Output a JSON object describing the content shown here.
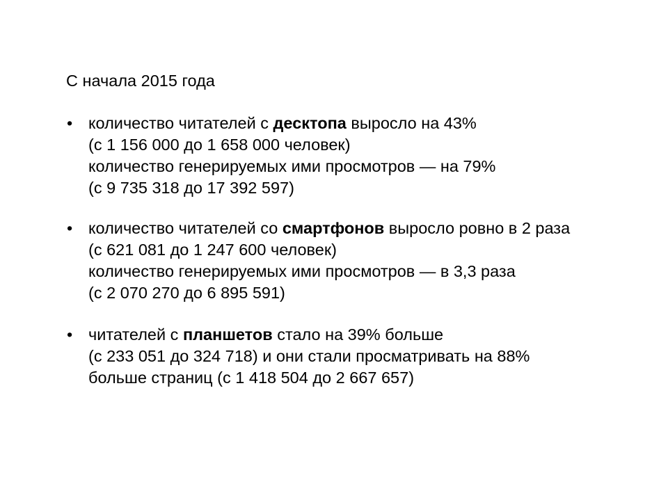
{
  "heading": "С начала 2015 года",
  "bullets": [
    {
      "line1": {
        "pre": "количество читателей с ",
        "bold": "десктопа",
        "post": " выросло на 43%"
      },
      "line2": "(с 1 156 000 до 1 658 000 человек)",
      "line3": "количество генерируемых ими просмотров — на 79%",
      "line4": "(с 9 735 318 до 17 392 597)"
    },
    {
      "line1": {
        "pre": "количество читателей со ",
        "bold": "смартфонов",
        "post": " выросло ровно в 2 раза"
      },
      "line2": "(с 621 081 до 1 247 600 человек)",
      "line3": "количество генерируемых ими просмотров — в 3,3 раза",
      "line4": "(с 2 070 270 до 6 895 591)"
    },
    {
      "line1": {
        "pre": "читателей с ",
        "bold": "планшетов",
        "post": " стало на 39% больше"
      },
      "line2": "(с 233 051 до 324 718) и они стали просматривать на 88%",
      "line3": "больше страниц (с 1 418 504 до 2 667 657)"
    }
  ],
  "bullet_glyph": "•"
}
